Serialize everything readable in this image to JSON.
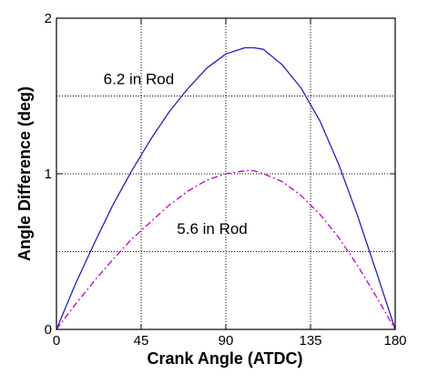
{
  "chart_data": {
    "type": "line",
    "xlabel": "Crank Angle (ATDC)",
    "ylabel": "Angle Difference (deg)",
    "xlim": [
      0,
      180
    ],
    "ylim": [
      0,
      2
    ],
    "x_ticks": [
      0,
      45,
      90,
      135,
      180
    ],
    "x_tick_labels": [
      "0",
      "45",
      "90",
      "135",
      "180"
    ],
    "y_ticks": [
      0,
      1,
      2
    ],
    "y_tick_labels": [
      "0",
      "1",
      "2"
    ],
    "grid": true,
    "grid_y": [
      0.5,
      1,
      1.5
    ],
    "x": [
      0,
      10,
      20,
      30,
      40,
      50,
      60,
      70,
      80,
      90,
      100,
      105,
      110,
      120,
      130,
      140,
      150,
      160,
      170,
      180
    ],
    "series": [
      {
        "color": "#2020c0",
        "style": "solid",
        "values": [
          0,
          0.29,
          0.55,
          0.8,
          1.02,
          1.22,
          1.4,
          1.55,
          1.68,
          1.77,
          1.81,
          1.81,
          1.8,
          1.7,
          1.55,
          1.34,
          1.06,
          0.73,
          0.37,
          0
        ]
      },
      {
        "color": "#c000c0",
        "style": "dashdot",
        "values": [
          0,
          0.16,
          0.31,
          0.45,
          0.58,
          0.69,
          0.8,
          0.89,
          0.96,
          1.0,
          1.02,
          1.02,
          1.0,
          0.95,
          0.86,
          0.74,
          0.59,
          0.41,
          0.21,
          0
        ]
      }
    ],
    "annotations": [
      {
        "text": "6.2 in Rod",
        "x": 25,
        "y": 1.61
      },
      {
        "text": "5.6 in Rod",
        "x": 64,
        "y": 0.65
      }
    ]
  }
}
